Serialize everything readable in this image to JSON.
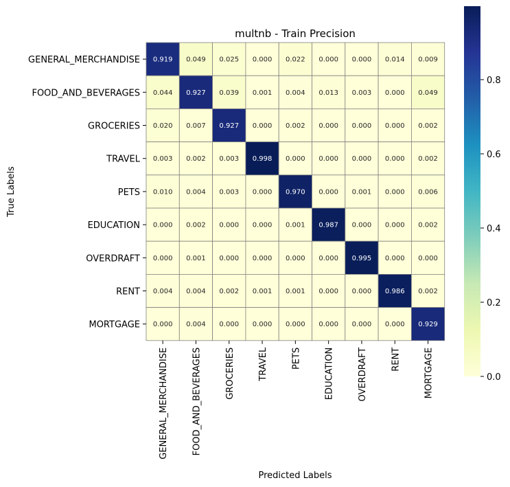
{
  "chart_data": {
    "type": "heatmap",
    "title": "multnb - Train Precision",
    "xlabel": "Predicted Labels",
    "ylabel": "True Labels",
    "categories": [
      "GENERAL_MERCHANDISE",
      "FOOD_AND_BEVERAGES",
      "GROCERIES",
      "TRAVEL",
      "PETS",
      "EDUCATION",
      "OVERDRAFT",
      "RENT",
      "MORTGAGE"
    ],
    "values": [
      [
        0.919,
        0.049,
        0.025,
        0.0,
        0.022,
        0.0,
        0.0,
        0.014,
        0.009
      ],
      [
        0.044,
        0.927,
        0.039,
        0.001,
        0.004,
        0.013,
        0.003,
        0.0,
        0.049
      ],
      [
        0.02,
        0.007,
        0.927,
        0.0,
        0.002,
        0.0,
        0.0,
        0.0,
        0.002
      ],
      [
        0.003,
        0.002,
        0.003,
        0.998,
        0.0,
        0.0,
        0.0,
        0.0,
        0.002
      ],
      [
        0.01,
        0.004,
        0.003,
        0.0,
        0.97,
        0.0,
        0.001,
        0.0,
        0.006
      ],
      [
        0.0,
        0.002,
        0.0,
        0.0,
        0.001,
        0.987,
        0.0,
        0.0,
        0.002
      ],
      [
        0.0,
        0.001,
        0.0,
        0.0,
        0.0,
        0.0,
        0.995,
        0.0,
        0.0
      ],
      [
        0.004,
        0.004,
        0.002,
        0.001,
        0.001,
        0.0,
        0.0,
        0.986,
        0.002
      ],
      [
        0.0,
        0.004,
        0.0,
        0.0,
        0.0,
        0.0,
        0.0,
        0.0,
        0.929
      ]
    ],
    "colormap": "YlGnBu",
    "colorbar": {
      "range": [
        0,
        0.998
      ],
      "ticks": [
        0.0,
        0.2,
        0.4,
        0.6,
        0.8
      ],
      "tick_labels": [
        "0.0",
        "0.2",
        "0.4",
        "0.6",
        "0.8"
      ]
    },
    "cell_border_color": "#808080"
  }
}
